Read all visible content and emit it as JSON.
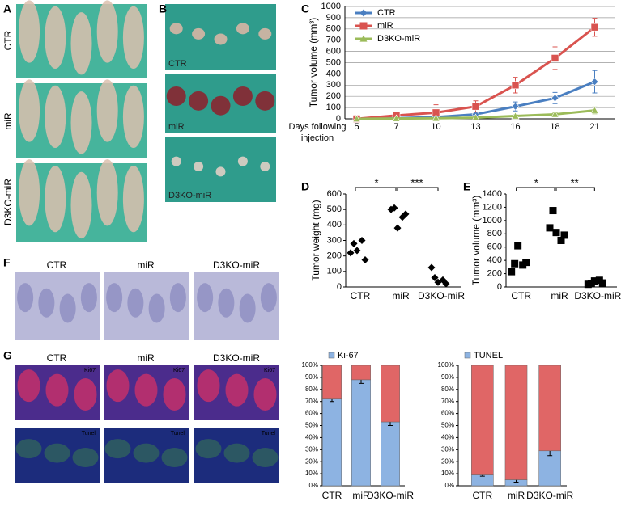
{
  "panel_labels": [
    "A",
    "B",
    "C",
    "D",
    "E",
    "F",
    "G"
  ],
  "panel_a": {
    "row_labels": [
      "CTR",
      "miR",
      "D3KO-miR"
    ]
  },
  "panel_b": {
    "photo_labels": [
      "CTR",
      "miR",
      "D3KO-miR"
    ]
  },
  "panel_f": {
    "column_titles": [
      "CTR",
      "miR",
      "D3KO-miR"
    ]
  },
  "panel_g": {
    "column_titles": [
      "CTR",
      "miR",
      "D3KO-miR"
    ],
    "stain_labels": [
      "Ki67",
      "Tunel"
    ]
  },
  "chart_data": [
    {
      "type": "line",
      "ylabel": "Tumor volume (mm³)",
      "xlabel": "Days following injection",
      "categories": [
        5,
        7,
        10,
        13,
        16,
        18,
        21
      ],
      "ylim": [
        0,
        1000
      ],
      "yticks": [
        0,
        100,
        200,
        300,
        400,
        500,
        600,
        700,
        800,
        900,
        1000
      ],
      "grid": true,
      "legend": "upper left",
      "series": [
        {
          "name": "CTR",
          "color": "#4a7fc1",
          "marker": "diamond",
          "values": [
            0,
            5,
            15,
            40,
            110,
            185,
            330
          ],
          "errors": [
            0,
            5,
            10,
            20,
            40,
            50,
            100
          ]
        },
        {
          "name": "miR",
          "color": "#d9534f",
          "marker": "square",
          "values": [
            0,
            30,
            55,
            110,
            300,
            540,
            815
          ],
          "errors": [
            0,
            10,
            70,
            50,
            70,
            100,
            80
          ]
        },
        {
          "name": "D3KO-miR",
          "color": "#9bbb59",
          "marker": "triangle",
          "values": [
            0,
            3,
            5,
            10,
            25,
            40,
            75
          ],
          "errors": [
            0,
            2,
            5,
            5,
            10,
            15,
            30
          ]
        }
      ]
    },
    {
      "type": "strip",
      "ylabel": "Tumor weight (mg)",
      "categories": [
        "CTR",
        "miR",
        "D3KO-miR"
      ],
      "values": [
        [
          220,
          235,
          280,
          300,
          175
        ],
        [
          500,
          380,
          510,
          450,
          470
        ],
        [
          125,
          30,
          60,
          45,
          20
        ]
      ],
      "color": "#000000",
      "marker": "diamond",
      "ylim": [
        0,
        600
      ],
      "yticks": [
        0,
        100,
        200,
        300,
        400,
        500,
        600
      ],
      "annotations": [
        "*",
        "***"
      ]
    },
    {
      "type": "strip",
      "ylabel": "Tumor volume (mm³)",
      "categories": [
        "CTR",
        "miR",
        "D3KO-miR"
      ],
      "values": [
        [
          230,
          620,
          350,
          330,
          370
        ],
        [
          890,
          820,
          1150,
          700,
          780
        ],
        [
          40,
          90,
          50,
          100,
          60
        ]
      ],
      "color": "#000000",
      "marker": "square",
      "ylim": [
        0,
        1400
      ],
      "yticks": [
        0,
        200,
        400,
        600,
        800,
        1000,
        1200,
        1400
      ],
      "annotations": [
        "*",
        "**"
      ]
    },
    {
      "type": "stacked_bar",
      "categories": [
        "CTR",
        "miR",
        "D3KO-miR"
      ],
      "legend": "top",
      "ylim": [
        0,
        100
      ],
      "yticks": [
        {
          "value": 0,
          "label": "0%"
        },
        {
          "value": 10,
          "label": "10%"
        },
        {
          "value": 20,
          "label": "20%"
        },
        {
          "value": 30,
          "label": "30%"
        },
        {
          "value": 40,
          "label": "40%"
        },
        {
          "value": 50,
          "label": "50%"
        },
        {
          "value": 60,
          "label": "60%"
        },
        {
          "value": 70,
          "label": "70%"
        },
        {
          "value": 80,
          "label": "80%"
        },
        {
          "value": 90,
          "label": "90%"
        },
        {
          "value": 100,
          "label": "100%"
        }
      ],
      "series": [
        {
          "name": "Ki-67",
          "color": "#8db3e2",
          "values": [
            72,
            88,
            53
          ],
          "errors": [
            2,
            3,
            3
          ]
        },
        {
          "color": "#e06666",
          "values": [
            28,
            12,
            47
          ]
        }
      ]
    },
    {
      "type": "stacked_bar",
      "categories": [
        "CTR",
        "miR",
        "D3KO-miR"
      ],
      "legend": "top",
      "ylim": [
        0,
        100
      ],
      "yticks": [
        {
          "value": 0,
          "label": "0%"
        },
        {
          "value": 10,
          "label": "10%"
        },
        {
          "value": 20,
          "label": "20%"
        },
        {
          "value": 30,
          "label": "30%"
        },
        {
          "value": 40,
          "label": "40%"
        },
        {
          "value": 50,
          "label": "50%"
        },
        {
          "value": 60,
          "label": "60%"
        },
        {
          "value": 70,
          "label": "70%"
        },
        {
          "value": 80,
          "label": "80%"
        },
        {
          "value": 90,
          "label": "90%"
        },
        {
          "value": 100,
          "label": "100%"
        }
      ],
      "series": [
        {
          "name": "TUNEL",
          "color": "#8db3e2",
          "values": [
            9,
            5,
            29
          ],
          "errors": [
            1,
            2,
            4
          ]
        },
        {
          "color": "#e06666",
          "values": [
            91,
            95,
            71
          ]
        }
      ]
    }
  ]
}
